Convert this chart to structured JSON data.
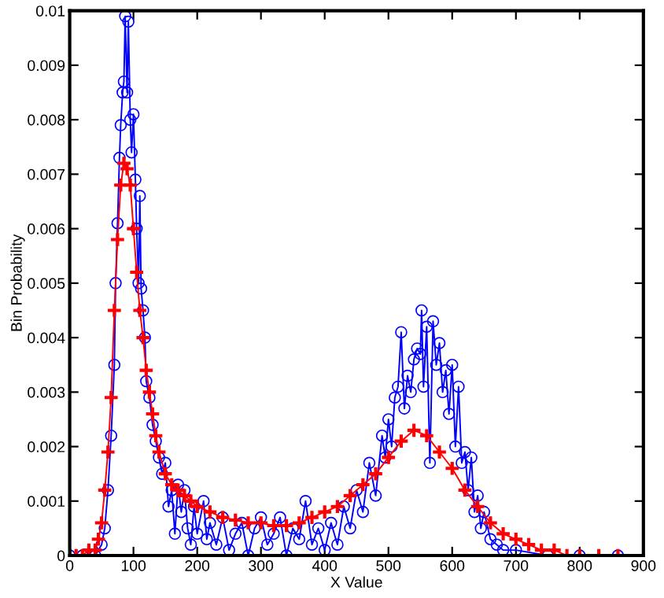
{
  "chart_data": {
    "type": "line",
    "xlabel": "X Value",
    "ylabel": "Bin Probability",
    "xlim": [
      0,
      900
    ],
    "xticks": [
      0,
      100,
      200,
      300,
      400,
      500,
      600,
      700,
      800,
      900
    ],
    "ylim": [
      0,
      0.01
    ],
    "yticks": [
      0,
      0.001,
      0.002,
      0.003,
      0.004,
      0.005,
      0.006,
      0.007,
      0.008,
      0.009,
      0.01
    ],
    "grid": false,
    "legend": false,
    "series": [
      {
        "color": "#0000ff",
        "marker": "circle",
        "line_style": "solid",
        "x": [
          0,
          20,
          40,
          50,
          55,
          60,
          65,
          70,
          72,
          75,
          78,
          80,
          83,
          85,
          87,
          90,
          92,
          95,
          97,
          100,
          103,
          105,
          108,
          110,
          112,
          115,
          118,
          120,
          125,
          130,
          135,
          140,
          145,
          150,
          155,
          160,
          165,
          170,
          175,
          180,
          185,
          190,
          195,
          200,
          210,
          215,
          220,
          230,
          240,
          250,
          260,
          270,
          280,
          290,
          300,
          310,
          320,
          330,
          340,
          350,
          360,
          370,
          380,
          390,
          400,
          410,
          420,
          430,
          440,
          450,
          460,
          470,
          480,
          490,
          495,
          500,
          505,
          510,
          515,
          520,
          525,
          530,
          535,
          540,
          545,
          550,
          552,
          555,
          560,
          565,
          570,
          575,
          580,
          585,
          590,
          595,
          600,
          605,
          610,
          615,
          620,
          625,
          630,
          635,
          640,
          645,
          650,
          660,
          670,
          680,
          700,
          750,
          800,
          860
        ],
        "values": [
          0,
          0,
          0,
          0.0002,
          0.0005,
          0.0012,
          0.0022,
          0.0035,
          0.005,
          0.0061,
          0.0073,
          0.0079,
          0.0085,
          0.0087,
          0.0099,
          0.0085,
          0.0098,
          0.008,
          0.0074,
          0.0081,
          0.0069,
          0.006,
          0.005,
          0.0066,
          0.0049,
          0.0045,
          0.004,
          0.0032,
          0.0029,
          0.0024,
          0.0021,
          0.0018,
          0.0015,
          0.0017,
          0.0009,
          0.0012,
          0.0004,
          0.0013,
          0.0008,
          0.0012,
          0.0005,
          0.0002,
          0.0009,
          0.0004,
          0.001,
          0.0003,
          0.0006,
          0.0002,
          0.0007,
          0.0001,
          0.0004,
          0.0006,
          0,
          0.0005,
          0.0007,
          0.0002,
          0.0004,
          0.0007,
          0,
          0.0005,
          0.0003,
          0.001,
          0.0002,
          0.0005,
          0.0001,
          0.0006,
          0.0002,
          0.0009,
          0.0005,
          0.0012,
          0.0008,
          0.0017,
          0.0011,
          0.0022,
          0.0018,
          0.0025,
          0.002,
          0.0029,
          0.0031,
          0.0041,
          0.0027,
          0.0033,
          0.003,
          0.0036,
          0.0038,
          0.0037,
          0.0045,
          0.0031,
          0.0042,
          0.0017,
          0.0043,
          0.0035,
          0.0039,
          0.003,
          0.0034,
          0.0026,
          0.0035,
          0.002,
          0.0031,
          0.0017,
          0.0019,
          0.0012,
          0.0018,
          0.0008,
          0.0011,
          0.0005,
          0.0008,
          0.0003,
          0.0002,
          0.0001,
          0.0001,
          0,
          0,
          0
        ]
      },
      {
        "color": "#ff0000",
        "marker": "cross",
        "line_style": "solid",
        "x": [
          0,
          10,
          20,
          30,
          40,
          45,
          50,
          55,
          60,
          65,
          70,
          75,
          80,
          85,
          90,
          95,
          100,
          105,
          110,
          115,
          120,
          125,
          130,
          135,
          140,
          150,
          160,
          170,
          180,
          190,
          200,
          220,
          240,
          260,
          280,
          300,
          320,
          340,
          360,
          380,
          400,
          420,
          440,
          460,
          480,
          500,
          520,
          540,
          560,
          580,
          600,
          620,
          640,
          660,
          680,
          700,
          720,
          740,
          760,
          780,
          800,
          830,
          860
        ],
        "values": [
          0,
          0,
          0,
          0.0001,
          0.0001,
          0.0003,
          0.0006,
          0.0012,
          0.0019,
          0.0029,
          0.0045,
          0.0058,
          0.0068,
          0.0072,
          0.0071,
          0.0068,
          0.006,
          0.0052,
          0.0045,
          0.004,
          0.0034,
          0.003,
          0.0026,
          0.0022,
          0.0019,
          0.0015,
          0.0013,
          0.0012,
          0.0011,
          0.001,
          0.0009,
          0.0008,
          0.0007,
          0.00065,
          0.0006,
          0.0006,
          0.00055,
          0.00055,
          0.0006,
          0.0007,
          0.0008,
          0.0009,
          0.0011,
          0.0013,
          0.0015,
          0.0018,
          0.0021,
          0.0023,
          0.0022,
          0.0019,
          0.0016,
          0.0012,
          0.0009,
          0.0006,
          0.0004,
          0.0003,
          0.0002,
          0.0001,
          0.0001,
          0,
          0,
          0,
          0
        ]
      }
    ]
  }
}
